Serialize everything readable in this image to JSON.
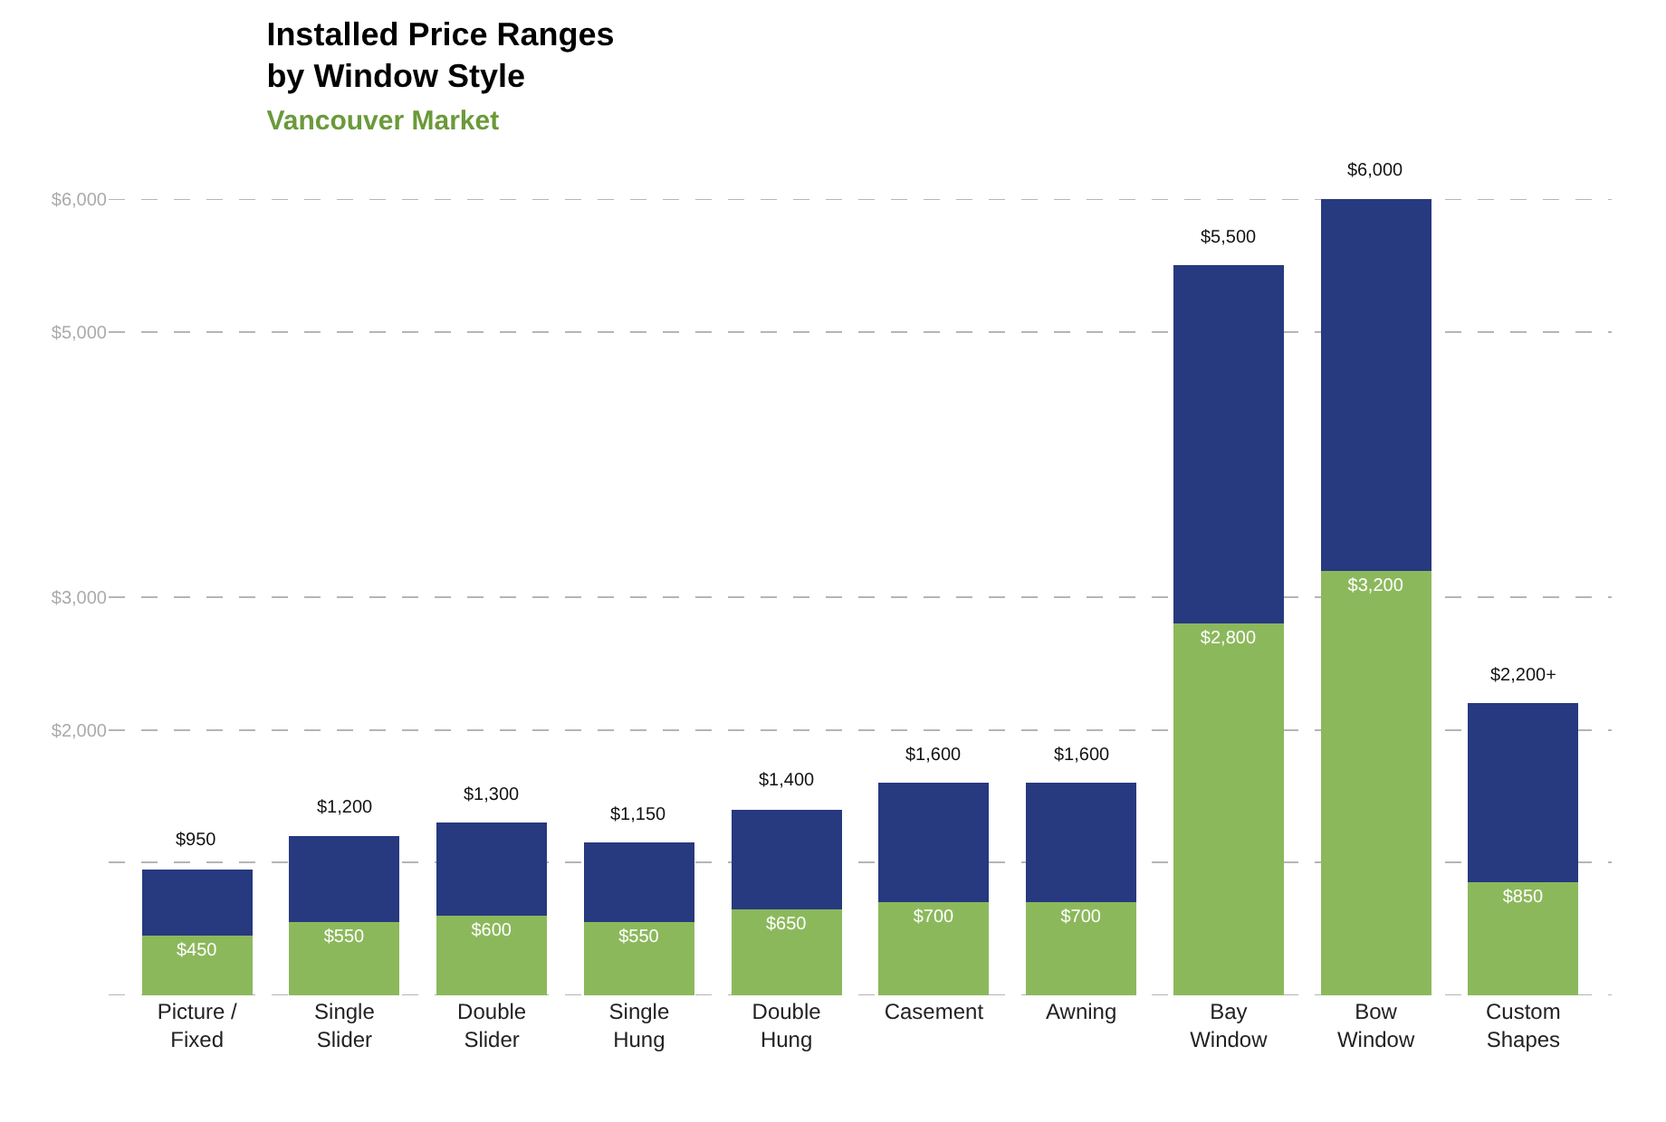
{
  "chart_data": {
    "type": "bar",
    "stacked": true,
    "title": "Installed Price Ranges\nby Window Style",
    "subtitle": "Vancouver Market",
    "categories": [
      "Picture /\nFixed",
      "Single\nSlider",
      "Double\nSlider",
      "Single\nHung",
      "Double\nHung",
      "Casement",
      "Awning",
      "Bay\nWindow",
      "Bow\nWindow",
      "Custom\nShapes"
    ],
    "series": [
      {
        "color": "#8cb85c",
        "values": [
          450,
          550,
          600,
          550,
          650,
          700,
          700,
          2800,
          3200,
          850
        ],
        "value_labels": [
          "$450",
          "$550",
          "$600",
          "$550",
          "$650",
          "$700",
          "$700",
          "$2,800",
          "$3,200",
          "$850"
        ]
      },
      {
        "color": "#27397f",
        "values": [
          500,
          650,
          700,
          600,
          750,
          900,
          900,
          2700,
          2800,
          1350
        ]
      }
    ],
    "totals": [
      "$950",
      "$1,200",
      "$1,300",
      "$1,150",
      "$1,400",
      "$1,600",
      "$1,600",
      "$5,500",
      "$6,000",
      "$2,200+"
    ],
    "ylim": [
      0,
      6000
    ],
    "yticks": [
      {
        "value": 0,
        "label": null
      },
      {
        "value": 1000,
        "label": null
      },
      {
        "value": 2000,
        "label": "$2,000"
      },
      {
        "value": 3000,
        "label": "$3,000"
      },
      {
        "value": 5000,
        "label": "$5,000"
      },
      {
        "value": 6000,
        "label": "$6,000"
      }
    ],
    "grid": "y"
  }
}
